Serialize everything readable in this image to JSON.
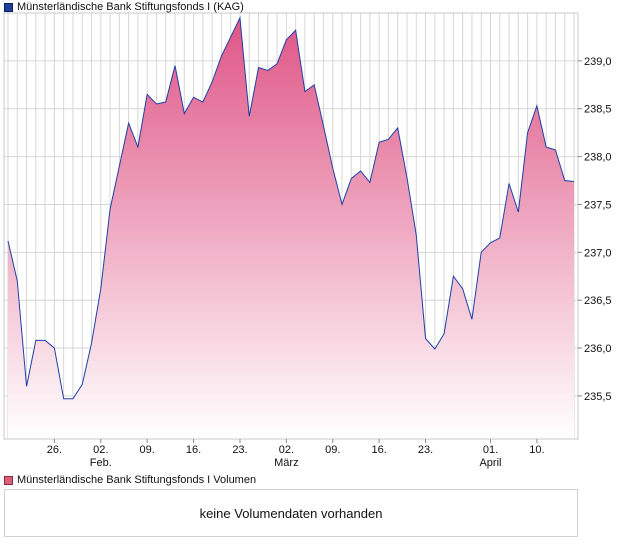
{
  "legend": {
    "price_label": "Münsterländische Bank Stiftungsfonds I (KAG)",
    "volume_label": "Münsterländische Bank Stiftungsfonds I Volumen"
  },
  "volume_panel": {
    "message": "keine Volumendaten vorhanden"
  },
  "colors": {
    "line": "#1f3fa8",
    "fill_top": "#df5585",
    "fill_bottom": "#ffffff",
    "grid": "#d6d6d6",
    "axis": "#888888"
  },
  "chart_data": {
    "type": "area",
    "title": "Münsterländische Bank Stiftungsfonds I (KAG)",
    "ylim": [
      235.05,
      239.5
    ],
    "yticks": [
      235.5,
      236.0,
      236.5,
      237.0,
      237.5,
      238.0,
      238.5,
      239.0
    ],
    "ytick_labels": [
      "235,5",
      "236,0",
      "236,5",
      "237,0",
      "237,5",
      "238,0",
      "238,5",
      "239,0"
    ],
    "grid": true,
    "xtick_labels": [
      {
        "label": "26.",
        "sub": "",
        "index": 5
      },
      {
        "label": "02.",
        "sub": "Feb.",
        "index": 10
      },
      {
        "label": "09.",
        "sub": "",
        "index": 15
      },
      {
        "label": "16.",
        "sub": "",
        "index": 20
      },
      {
        "label": "23.",
        "sub": "",
        "index": 25
      },
      {
        "label": "02.",
        "sub": "März",
        "index": 30
      },
      {
        "label": "09.",
        "sub": "",
        "index": 35
      },
      {
        "label": "16.",
        "sub": "",
        "index": 40
      },
      {
        "label": "23.",
        "sub": "",
        "index": 45
      },
      {
        "label": "01.",
        "sub": "April",
        "index": 52
      },
      {
        "label": "10.",
        "sub": "",
        "index": 57
      }
    ],
    "values": [
      237.12,
      236.7,
      235.6,
      236.08,
      236.08,
      236.0,
      235.47,
      235.47,
      235.62,
      236.05,
      236.62,
      237.45,
      237.9,
      238.35,
      238.1,
      238.65,
      238.55,
      238.57,
      238.95,
      238.45,
      238.62,
      238.57,
      238.78,
      239.05,
      239.25,
      239.45,
      238.42,
      238.93,
      238.9,
      238.97,
      239.22,
      239.32,
      238.68,
      238.75,
      238.32,
      237.88,
      237.5,
      237.77,
      237.85,
      237.73,
      238.15,
      238.18,
      238.3,
      237.78,
      237.18,
      236.1,
      235.99,
      236.15,
      236.75,
      236.62,
      236.3,
      237.0,
      237.1,
      237.15,
      237.72,
      237.42,
      238.25,
      238.53,
      238.1,
      238.07,
      237.75,
      237.74
    ]
  }
}
